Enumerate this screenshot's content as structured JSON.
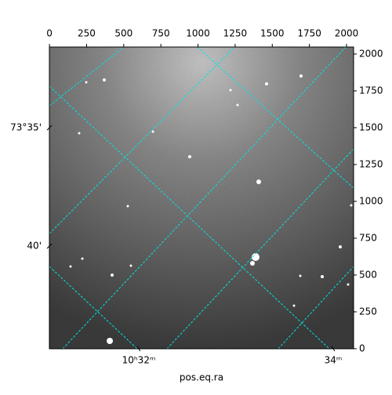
{
  "chart_data": {
    "type": "image",
    "xlabel": "pos.eq.ra",
    "xlim": [
      -0.5,
      2047.5
    ],
    "xticks": [
      0,
      250,
      500,
      750,
      1000,
      1250,
      1500,
      1750,
      2000
    ],
    "ylim": [
      -0.5,
      2047.5
    ],
    "yticks": [
      0,
      250,
      500,
      750,
      1000,
      1250,
      1500,
      1750,
      2000
    ],
    "ra_tick_labels": [
      "10ʰ32ᵐ",
      "34ᵐ"
    ],
    "dec_tick_labels": [
      "73°35'",
      "40'"
    ],
    "grid_color": "#00e5e5"
  }
}
